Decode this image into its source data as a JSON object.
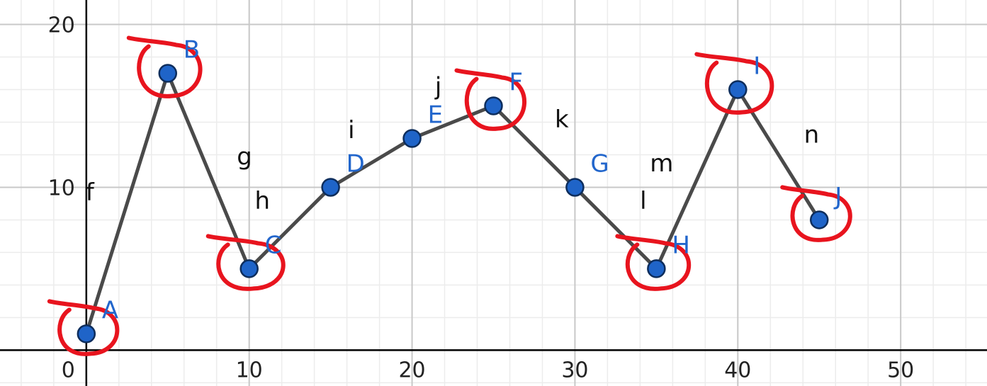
{
  "chart_data": {
    "type": "line",
    "title": "",
    "xlabel": "",
    "ylabel": "",
    "xlim": [
      -5.3,
      55.3
    ],
    "ylim": [
      -2.2,
      21.5
    ],
    "x_ticks": [
      0,
      10,
      20,
      30,
      40,
      50
    ],
    "y_ticks": [
      10,
      20
    ],
    "x_tick_labels": [
      "0",
      "10",
      "20",
      "30",
      "40",
      "50"
    ],
    "y_tick_labels": [
      "10",
      "20"
    ],
    "grid": true,
    "points": [
      {
        "name": "A",
        "x": 0,
        "y": 1
      },
      {
        "name": "B",
        "x": 5,
        "y": 17
      },
      {
        "name": "C",
        "x": 10,
        "y": 5
      },
      {
        "name": "D",
        "x": 15,
        "y": 10
      },
      {
        "name": "E",
        "x": 20,
        "y": 13
      },
      {
        "name": "F",
        "x": 25,
        "y": 15
      },
      {
        "name": "G",
        "x": 30,
        "y": 10
      },
      {
        "name": "H",
        "x": 35,
        "y": 5
      },
      {
        "name": "I",
        "x": 40,
        "y": 16
      },
      {
        "name": "J",
        "x": 45,
        "y": 8
      }
    ],
    "segments": [
      {
        "name": "f",
        "from": "A",
        "to": "B"
      },
      {
        "name": "g",
        "from": "B",
        "to": "C"
      },
      {
        "name": "h",
        "from": "C",
        "to": "D"
      },
      {
        "name": "i",
        "from": "D",
        "to": "E"
      },
      {
        "name": "j",
        "from": "E",
        "to": "F"
      },
      {
        "name": "k",
        "from": "F",
        "to": "G"
      },
      {
        "name": "l",
        "from": "G",
        "to": "H"
      },
      {
        "name": "m",
        "from": "H",
        "to": "I"
      },
      {
        "name": "n",
        "from": "I",
        "to": "J"
      }
    ],
    "circled_points": [
      "A",
      "B",
      "C",
      "F",
      "H",
      "I",
      "J"
    ],
    "colors": {
      "line": "#4a4a4a",
      "point_fill": "#1f64c8",
      "point_label": "#2266cc",
      "segment_label": "#111111",
      "annotation": "#e8141e",
      "grid_major": "#c8c8c8",
      "grid_minor": "#ececec",
      "axis": "#000000"
    }
  }
}
